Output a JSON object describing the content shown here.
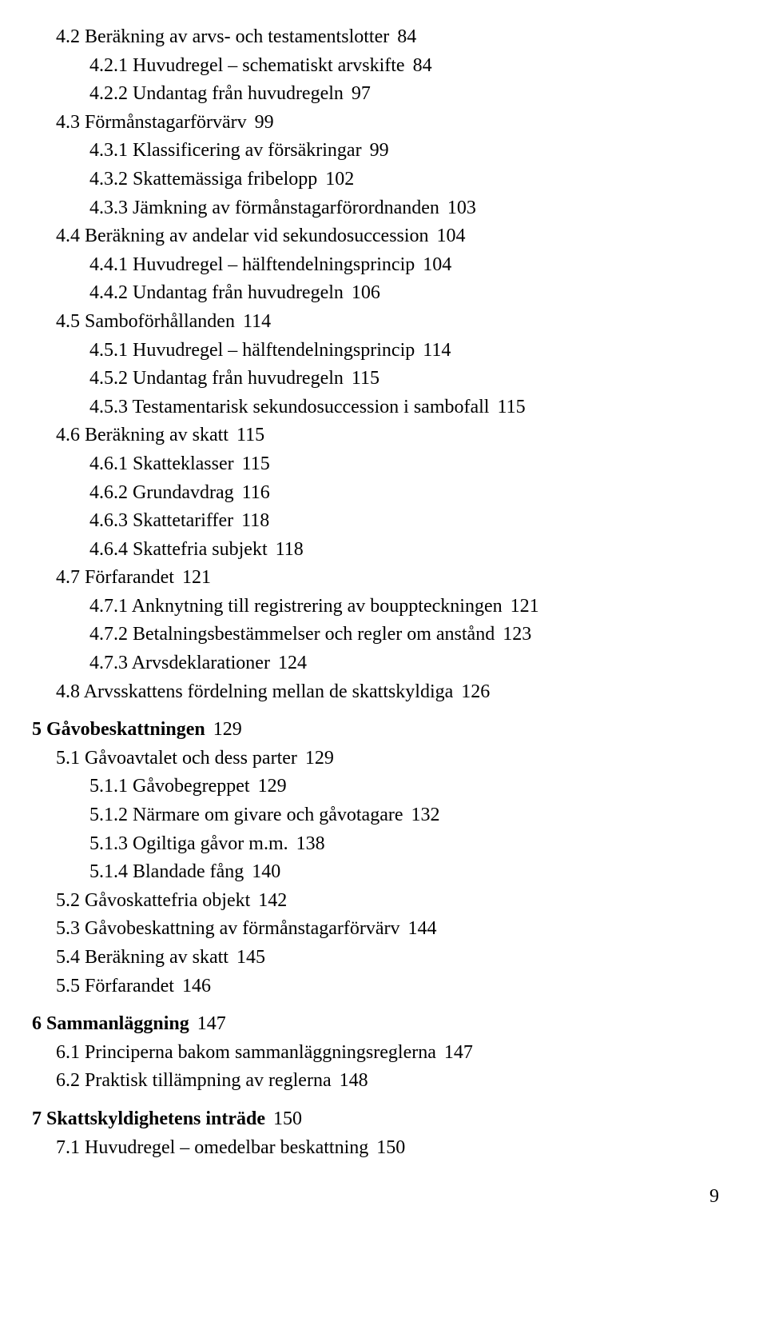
{
  "entries": [
    {
      "indent": 1,
      "bold": false,
      "num": "4.2",
      "title": "Beräkning av arvs- och testamentslotter",
      "page": "84"
    },
    {
      "indent": 2,
      "bold": false,
      "num": "4.2.1",
      "title": "Huvudregel – schematiskt arvskifte",
      "page": "84"
    },
    {
      "indent": 2,
      "bold": false,
      "num": "4.2.2",
      "title": "Undantag från huvudregeln",
      "page": "97"
    },
    {
      "indent": 1,
      "bold": false,
      "num": "4.3",
      "title": "Förmånstagarförvärv",
      "page": "99"
    },
    {
      "indent": 2,
      "bold": false,
      "num": "4.3.1",
      "title": "Klassificering av försäkringar",
      "page": "99"
    },
    {
      "indent": 2,
      "bold": false,
      "num": "4.3.2",
      "title": "Skattemässiga fribelopp",
      "page": "102"
    },
    {
      "indent": 2,
      "bold": false,
      "num": "4.3.3",
      "title": "Jämkning av förmånstagarförordnanden",
      "page": "103"
    },
    {
      "indent": 1,
      "bold": false,
      "num": "4.4",
      "title": "Beräkning av andelar vid sekundosuccession",
      "page": "104"
    },
    {
      "indent": 2,
      "bold": false,
      "num": "4.4.1",
      "title": "Huvudregel – hälftendelningsprincip",
      "page": "104"
    },
    {
      "indent": 2,
      "bold": false,
      "num": "4.4.2",
      "title": "Undantag från huvudregeln",
      "page": "106"
    },
    {
      "indent": 1,
      "bold": false,
      "num": "4.5",
      "title": "Samboförhållanden",
      "page": "114"
    },
    {
      "indent": 2,
      "bold": false,
      "num": "4.5.1",
      "title": "Huvudregel – hälftendelningsprincip",
      "page": "114"
    },
    {
      "indent": 2,
      "bold": false,
      "num": "4.5.2",
      "title": "Undantag från huvudregeln",
      "page": "115"
    },
    {
      "indent": 2,
      "bold": false,
      "num": "4.5.3",
      "title": "Testamentarisk sekundosuccession i sambofall",
      "page": "115"
    },
    {
      "indent": 1,
      "bold": false,
      "num": "4.6",
      "title": "Beräkning av skatt",
      "page": "115"
    },
    {
      "indent": 2,
      "bold": false,
      "num": "4.6.1",
      "title": "Skatteklasser",
      "page": "115"
    },
    {
      "indent": 2,
      "bold": false,
      "num": "4.6.2",
      "title": "Grundavdrag",
      "page": "116"
    },
    {
      "indent": 2,
      "bold": false,
      "num": "4.6.3",
      "title": "Skattetariffer",
      "page": "118"
    },
    {
      "indent": 2,
      "bold": false,
      "num": "4.6.4",
      "title": "Skattefria subjekt",
      "page": "118"
    },
    {
      "indent": 1,
      "bold": false,
      "num": "4.7",
      "title": "Förfarandet",
      "page": "121"
    },
    {
      "indent": 2,
      "bold": false,
      "num": "4.7.1",
      "title": "Anknytning till registrering av bouppteckningen",
      "page": "121"
    },
    {
      "indent": 2,
      "bold": false,
      "num": "4.7.2",
      "title": "Betalningsbestämmelser och regler om anstånd",
      "page": "123"
    },
    {
      "indent": 2,
      "bold": false,
      "num": "4.7.3",
      "title": "Arvsdeklarationer",
      "page": "124"
    },
    {
      "indent": 1,
      "bold": false,
      "num": "4.8",
      "title": "Arvsskattens fördelning mellan de skattskyldiga",
      "page": "126"
    },
    {
      "indent": 0,
      "bold": true,
      "num": "5",
      "title": "Gåvobeskattningen",
      "page": "129",
      "gap": true
    },
    {
      "indent": 1,
      "bold": false,
      "num": "5.1",
      "title": "Gåvoavtalet och dess parter",
      "page": "129"
    },
    {
      "indent": 2,
      "bold": false,
      "num": "5.1.1",
      "title": "Gåvobegreppet",
      "page": "129"
    },
    {
      "indent": 2,
      "bold": false,
      "num": "5.1.2",
      "title": "Närmare om givare och gåvotagare",
      "page": "132"
    },
    {
      "indent": 2,
      "bold": false,
      "num": "5.1.3",
      "title": "Ogiltiga gåvor m.m.",
      "page": "138"
    },
    {
      "indent": 2,
      "bold": false,
      "num": "5.1.4",
      "title": "Blandade fång",
      "page": "140"
    },
    {
      "indent": 1,
      "bold": false,
      "num": "5.2",
      "title": "Gåvoskattefria objekt",
      "page": "142"
    },
    {
      "indent": 1,
      "bold": false,
      "num": "5.3",
      "title": "Gåvobeskattning av förmånstagarförvärv",
      "page": "144"
    },
    {
      "indent": 1,
      "bold": false,
      "num": "5.4",
      "title": "Beräkning av skatt",
      "page": "145"
    },
    {
      "indent": 1,
      "bold": false,
      "num": "5.5",
      "title": "Förfarandet",
      "page": "146"
    },
    {
      "indent": 0,
      "bold": true,
      "num": "6",
      "title": "Sammanläggning",
      "page": "147",
      "gap": true
    },
    {
      "indent": 1,
      "bold": false,
      "num": "6.1",
      "title": "Principerna bakom sammanläggningsreglerna",
      "page": "147"
    },
    {
      "indent": 1,
      "bold": false,
      "num": "6.2",
      "title": "Praktisk tillämpning av reglerna",
      "page": "148"
    },
    {
      "indent": 0,
      "bold": true,
      "num": "7",
      "title": "Skattskyldighetens inträde",
      "page": "150",
      "gap": true
    },
    {
      "indent": 1,
      "bold": false,
      "num": "7.1",
      "title": "Huvudregel – omedelbar beskattning",
      "page": "150"
    }
  ],
  "page_number": "9"
}
